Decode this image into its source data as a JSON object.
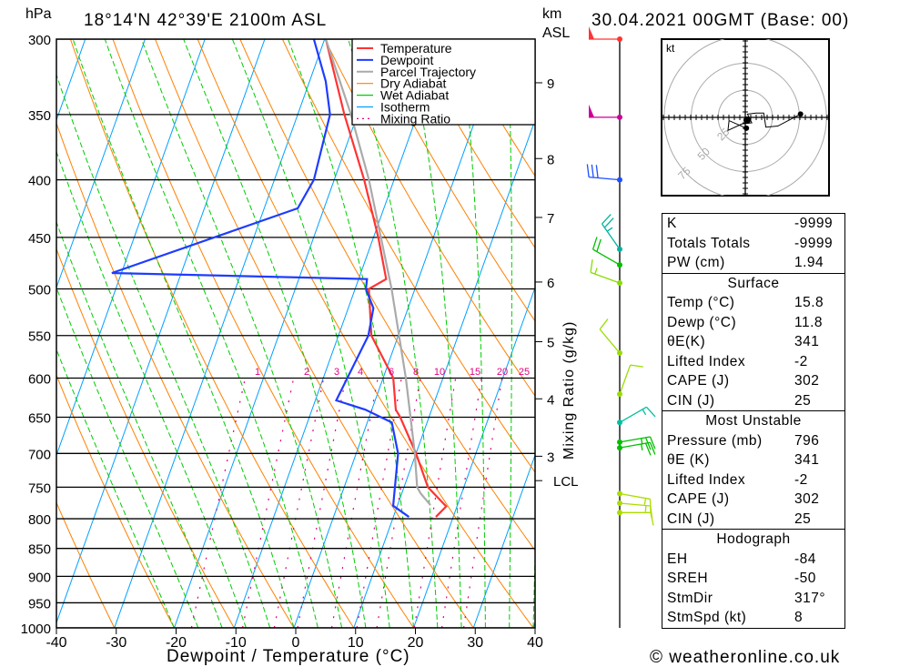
{
  "header": {
    "pressure_unit": "hPa",
    "location": "18°14'N 42°39'E 2100m ASL",
    "height_unit": "km",
    "height_ref": "ASL",
    "datetime": "30.04.2021 00GMT (Base: 00)"
  },
  "legend": [
    "Temperature",
    "Dewpoint",
    "Parcel Trajectory",
    "Dry Adiabat",
    "Wet Adiabat",
    "Isotherm",
    "Mixing Ratio"
  ],
  "colors": {
    "temperature": "#ff3333",
    "dewpoint": "#1e3cff",
    "parcel": "#aaaaaa",
    "dry": "#ff8000",
    "wet": "#00cc00",
    "isotherm": "#00a0ff",
    "mixing": "#e0007f"
  },
  "chart_data": {
    "type": "line",
    "title": "18°14'N 42°39'E 2100m ASL",
    "xlabel": "Dewpoint / Temperature (°C)",
    "ylabel": "hPa",
    "xlim": [
      -40,
      40
    ],
    "ylim": [
      1000,
      300
    ],
    "x_ticks": [
      "-40",
      "-30",
      "-20",
      "-10",
      "0",
      "10",
      "20",
      "30",
      "40"
    ],
    "y_ticks": [
      "300",
      "350",
      "400",
      "450",
      "500",
      "550",
      "600",
      "650",
      "700",
      "750",
      "800",
      "850",
      "900",
      "950",
      "1000"
    ],
    "km_ticks": [
      {
        "label": "9",
        "p": 328
      },
      {
        "label": "8",
        "p": 383
      },
      {
        "label": "7",
        "p": 432
      },
      {
        "label": "6",
        "p": 493
      },
      {
        "label": "5",
        "p": 557
      },
      {
        "label": "4",
        "p": 626
      },
      {
        "label": "3",
        "p": 704
      },
      {
        "label": "LCL",
        "p": 740
      }
    ],
    "mixing_ratio_label": "Mixing Ratio (g/kg)",
    "mixing_ratios": [
      "1",
      "2",
      "3",
      "4",
      "6",
      "8",
      "10",
      "15",
      "20",
      "25"
    ],
    "series": [
      {
        "name": "Temperature",
        "points": [
          [
            797,
            17.1
          ],
          [
            780,
            18.2
          ],
          [
            750,
            14.0
          ],
          [
            700,
            10.0
          ],
          [
            650,
            5.2
          ],
          [
            640,
            4.0
          ],
          [
            600,
            1.7
          ],
          [
            550,
            -4.5
          ],
          [
            500,
            -7.7
          ],
          [
            490,
            -5.4
          ],
          [
            450,
            -9.2
          ],
          [
            400,
            -15.0
          ],
          [
            350,
            -22.2
          ],
          [
            300,
            -29.8
          ]
        ]
      },
      {
        "name": "Dewpoint",
        "points": [
          [
            797,
            12.6
          ],
          [
            779,
            9.3
          ],
          [
            700,
            7.0
          ],
          [
            657,
            4.1
          ],
          [
            640,
            -1.1
          ],
          [
            628,
            -6.5
          ],
          [
            550,
            -5.0
          ],
          [
            520,
            -5.8
          ],
          [
            500,
            -8.2
          ],
          [
            490,
            -8.6
          ],
          [
            484,
            -51.6
          ],
          [
            424,
            -24.4
          ],
          [
            400,
            -23.4
          ],
          [
            350,
            -24.6
          ],
          [
            327,
            -27.3
          ],
          [
            300,
            -31.8
          ]
        ]
      },
      {
        "name": "Parcel Trajectory",
        "points": [
          [
            778,
            15.5
          ],
          [
            760,
            13.2
          ],
          [
            750,
            12.2
          ],
          [
            700,
            9.8
          ],
          [
            600,
            3.8
          ],
          [
            500,
            -3.9
          ],
          [
            400,
            -14.2
          ],
          [
            350,
            -21.1
          ],
          [
            300,
            -29.8
          ]
        ]
      }
    ]
  },
  "wind_barbs": [
    {
      "p": 300,
      "dir": 270,
      "speed": 50,
      "color": "#ff3333"
    },
    {
      "p": 352,
      "dir": 270,
      "speed": 50,
      "color": "#cc0099"
    },
    {
      "p": 400,
      "dir": 275,
      "speed": 30,
      "color": "#1e50ff"
    },
    {
      "p": 461,
      "dir": 325,
      "speed": 25,
      "color": "#00b3a0"
    },
    {
      "p": 476,
      "dir": 300,
      "speed": 20,
      "color": "#00c000"
    },
    {
      "p": 494,
      "dir": 290,
      "speed": 15,
      "color": "#88dd00"
    },
    {
      "p": 570,
      "dir": 320,
      "speed": 10,
      "color": "#99dd00"
    },
    {
      "p": 620,
      "dir": 20,
      "speed": 10,
      "color": "#99dd00"
    },
    {
      "p": 657,
      "dir": 60,
      "speed": 15,
      "color": "#00c0a0"
    },
    {
      "p": 684,
      "dir": 80,
      "speed": 25,
      "color": "#00c000"
    },
    {
      "p": 692,
      "dir": 80,
      "speed": 25,
      "color": "#00c000"
    },
    {
      "p": 760,
      "dir": 100,
      "speed": 15,
      "color": "#aadd00"
    },
    {
      "p": 775,
      "dir": 95,
      "speed": 15,
      "color": "#aadd00"
    },
    {
      "p": 790,
      "dir": 90,
      "speed": 10,
      "color": "#aadd00"
    }
  ],
  "hodograph": {
    "unit": "kt",
    "rings": [
      "25",
      "50",
      "75"
    ],
    "trace": [
      [
        1,
        -10
      ],
      [
        -15,
        -3
      ],
      [
        -16,
        -12
      ],
      [
        -3,
        -6
      ],
      [
        6,
        -5
      ],
      [
        2,
        3
      ],
      [
        10,
        4
      ],
      [
        17,
        4
      ],
      [
        19,
        -9
      ],
      [
        30,
        -8
      ],
      [
        51,
        3
      ]
    ]
  },
  "indices": [
    {
      "label": "K",
      "value": "-9999"
    },
    {
      "label": "Totals Totals",
      "value": "-9999"
    },
    {
      "label": "PW (cm)",
      "value": "1.94"
    }
  ],
  "surface": {
    "title": "Surface",
    "rows": [
      {
        "label": "Temp (°C)",
        "value": "15.8"
      },
      {
        "label": "Dewp (°C)",
        "value": "11.8"
      },
      {
        "label": "θE(K)",
        "value": "341"
      },
      {
        "label": "Lifted Index",
        "value": "-2"
      },
      {
        "label": "CAPE (J)",
        "value": "302"
      },
      {
        "label": "CIN (J)",
        "value": "25"
      }
    ]
  },
  "most_unstable": {
    "title": "Most Unstable",
    "rows": [
      {
        "label": "Pressure (mb)",
        "value": "796"
      },
      {
        "label": "θE (K)",
        "value": "341"
      },
      {
        "label": "Lifted Index",
        "value": "-2"
      },
      {
        "label": "CAPE (J)",
        "value": "302"
      },
      {
        "label": "CIN (J)",
        "value": "25"
      }
    ]
  },
  "hodo_table": {
    "title": "Hodograph",
    "rows": [
      {
        "label": "EH",
        "value": "-84"
      },
      {
        "label": "SREH",
        "value": "-50"
      },
      {
        "label": "StmDir",
        "value": "317°"
      },
      {
        "label": "StmSpd (kt)",
        "value": "8"
      }
    ]
  },
  "footer": {
    "copyright": "© weatheronline.co.uk"
  }
}
